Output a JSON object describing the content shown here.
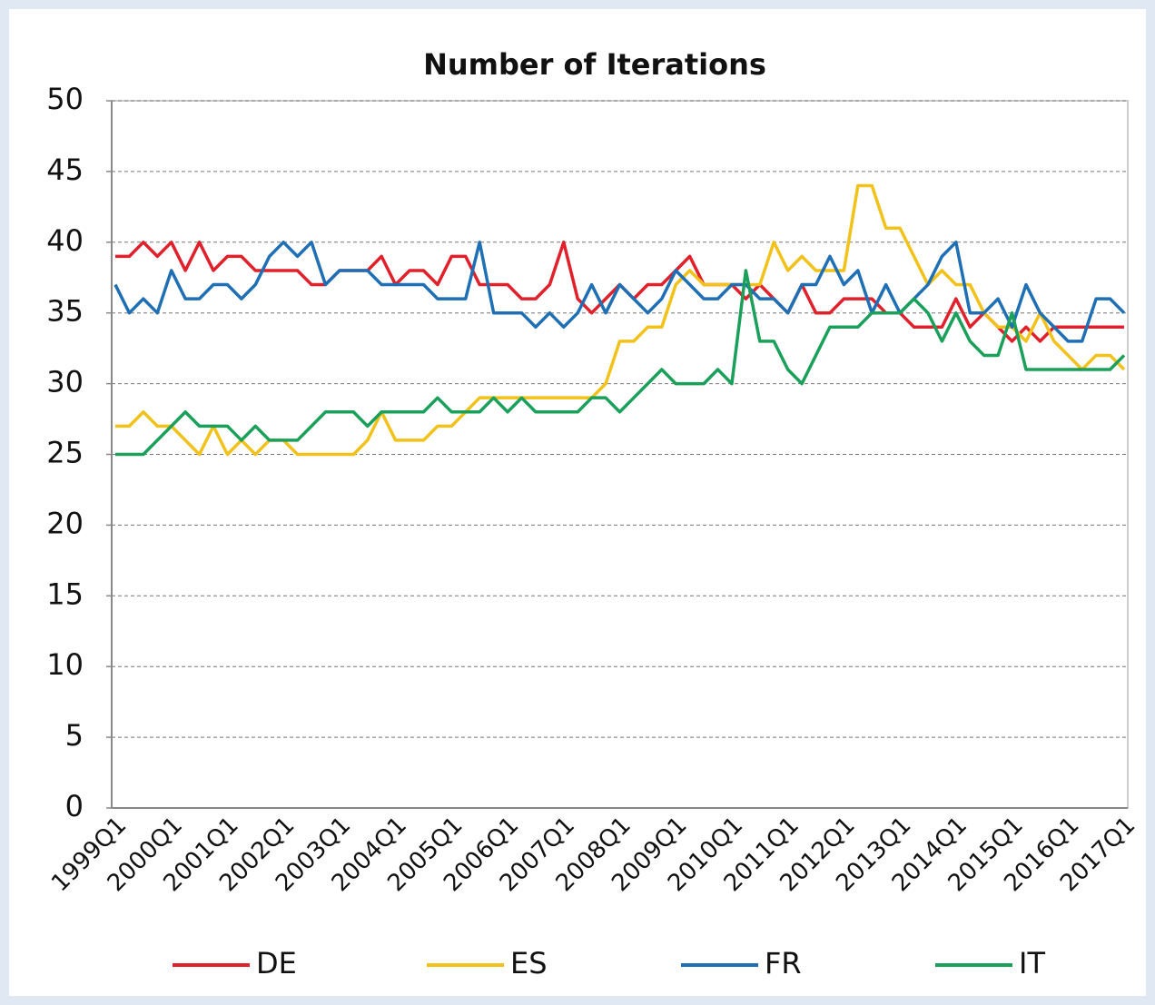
{
  "chart_data": {
    "type": "line",
    "title": "Number of Iterations",
    "categories": [
      "1999Q1",
      null,
      null,
      null,
      "2000Q1",
      null,
      null,
      null,
      "2001Q1",
      null,
      null,
      null,
      "2002Q1",
      null,
      null,
      null,
      "2003Q1",
      null,
      null,
      null,
      "2004Q1",
      null,
      null,
      null,
      "2005Q1",
      null,
      null,
      null,
      "2006Q1",
      null,
      null,
      null,
      "2007Q1",
      null,
      null,
      null,
      "2008Q1",
      null,
      null,
      null,
      "2009Q1",
      null,
      null,
      null,
      "2010Q1",
      null,
      null,
      null,
      "2011Q1",
      null,
      null,
      null,
      "2012Q1",
      null,
      null,
      null,
      "2013Q1",
      null,
      null,
      null,
      "2014Q1",
      null,
      null,
      null,
      "2015Q1",
      null,
      null,
      null,
      "2016Q1",
      null,
      null,
      null,
      "2017Q1"
    ],
    "series": [
      {
        "name": "DE",
        "color": "#e0202a",
        "values": [
          39,
          39,
          40,
          39,
          40,
          38,
          40,
          38,
          39,
          39,
          38,
          38,
          38,
          38,
          37,
          37,
          38,
          38,
          38,
          39,
          37,
          38,
          38,
          37,
          39,
          39,
          37,
          37,
          37,
          36,
          36,
          37,
          40,
          36,
          35,
          36,
          37,
          36,
          37,
          37,
          38,
          39,
          37,
          37,
          37,
          36,
          37,
          36,
          35,
          37,
          35,
          35,
          36,
          36,
          36,
          35,
          35,
          34,
          34,
          34,
          36,
          34,
          35,
          34,
          33,
          34,
          33,
          34,
          34,
          34,
          34,
          34,
          34
        ]
      },
      {
        "name": "ES",
        "color": "#f2c21b",
        "values": [
          27,
          27,
          28,
          27,
          27,
          26,
          25,
          27,
          25,
          26,
          25,
          26,
          26,
          25,
          25,
          25,
          25,
          25,
          26,
          28,
          26,
          26,
          26,
          27,
          27,
          28,
          29,
          29,
          29,
          29,
          29,
          29,
          29,
          29,
          29,
          30,
          33,
          33,
          34,
          34,
          37,
          38,
          37,
          37,
          37,
          37,
          37,
          40,
          38,
          39,
          38,
          38,
          38,
          44,
          44,
          41,
          41,
          39,
          37,
          38,
          37,
          37,
          35,
          34,
          34,
          33,
          35,
          33,
          32,
          31,
          32,
          32,
          31
        ]
      },
      {
        "name": "FR",
        "color": "#1f6fb5",
        "values": [
          37,
          35,
          36,
          35,
          38,
          36,
          36,
          37,
          37,
          36,
          37,
          39,
          40,
          39,
          40,
          37,
          38,
          38,
          38,
          37,
          37,
          37,
          37,
          36,
          36,
          36,
          40,
          35,
          35,
          35,
          34,
          35,
          34,
          35,
          37,
          35,
          37,
          36,
          35,
          36,
          38,
          37,
          36,
          36,
          37,
          37,
          36,
          36,
          35,
          37,
          37,
          39,
          37,
          38,
          35,
          37,
          35,
          36,
          37,
          39,
          40,
          35,
          35,
          36,
          34,
          37,
          35,
          34,
          33,
          33,
          36,
          36,
          35
        ]
      },
      {
        "name": "IT",
        "color": "#1aa05a",
        "values": [
          25,
          25,
          25,
          26,
          27,
          28,
          27,
          27,
          27,
          26,
          27,
          26,
          26,
          26,
          27,
          28,
          28,
          28,
          27,
          28,
          28,
          28,
          28,
          29,
          28,
          28,
          28,
          29,
          28,
          29,
          28,
          28,
          28,
          28,
          29,
          29,
          28,
          29,
          30,
          31,
          30,
          30,
          30,
          31,
          30,
          38,
          33,
          33,
          31,
          30,
          32,
          34,
          34,
          34,
          35,
          35,
          35,
          36,
          35,
          33,
          35,
          33,
          32,
          32,
          35,
          31,
          31,
          31,
          31,
          31,
          31,
          31,
          32
        ]
      }
    ],
    "ylim": [
      0,
      50
    ],
    "yticks": [
      0,
      5,
      10,
      15,
      20,
      25,
      30,
      35,
      40,
      45,
      50
    ],
    "grid": true,
    "legend": "bottom"
  }
}
